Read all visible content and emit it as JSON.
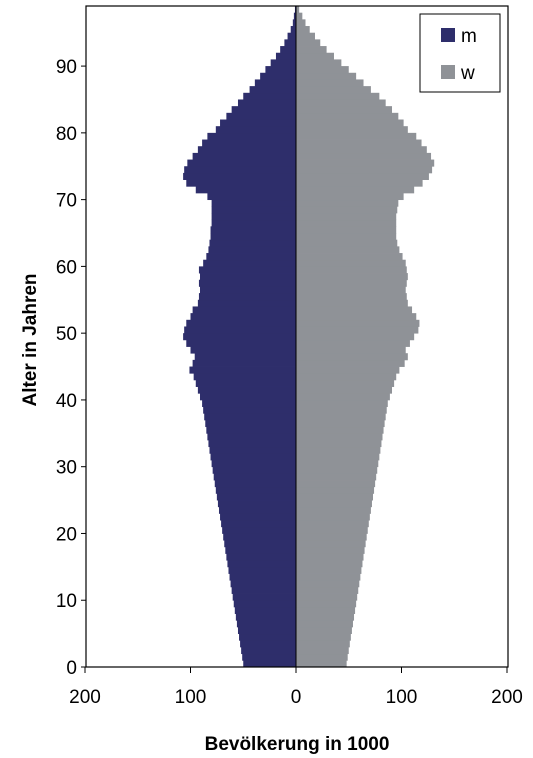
{
  "chart_data": {
    "type": "bar",
    "orientation": "horizontal-population-pyramid",
    "xlabel": "Bevölkerung in 1000",
    "ylabel": "Alter in Jahren",
    "xlim": [
      -200,
      200
    ],
    "ylim": [
      0,
      99
    ],
    "x_ticks": [
      {
        "value": -200,
        "label": "200"
      },
      {
        "value": -100,
        "label": "100"
      },
      {
        "value": 0,
        "label": "0"
      },
      {
        "value": 100,
        "label": "100"
      },
      {
        "value": 200,
        "label": "200"
      }
    ],
    "y_ticks": [
      {
        "value": 0,
        "label": "0"
      },
      {
        "value": 10,
        "label": "10"
      },
      {
        "value": 20,
        "label": "20"
      },
      {
        "value": 30,
        "label": "30"
      },
      {
        "value": 40,
        "label": "40"
      },
      {
        "value": 50,
        "label": "50"
      },
      {
        "value": 60,
        "label": "60"
      },
      {
        "value": 70,
        "label": "70"
      },
      {
        "value": 80,
        "label": "80"
      },
      {
        "value": 90,
        "label": "90"
      }
    ],
    "legend_position": "top-right",
    "grid": false,
    "ages": [
      0,
      1,
      2,
      3,
      4,
      5,
      6,
      7,
      8,
      9,
      10,
      11,
      12,
      13,
      14,
      15,
      16,
      17,
      18,
      19,
      20,
      21,
      22,
      23,
      24,
      25,
      26,
      27,
      28,
      29,
      30,
      31,
      32,
      33,
      34,
      35,
      36,
      37,
      38,
      39,
      40,
      41,
      42,
      43,
      44,
      45,
      46,
      47,
      48,
      49,
      50,
      51,
      52,
      53,
      54,
      55,
      56,
      57,
      58,
      59,
      60,
      61,
      62,
      63,
      64,
      65,
      66,
      67,
      68,
      69,
      70,
      71,
      72,
      73,
      74,
      75,
      76,
      77,
      78,
      79,
      80,
      81,
      82,
      83,
      84,
      85,
      86,
      87,
      88,
      89,
      90,
      91,
      92,
      93,
      94,
      95,
      96,
      97,
      98
    ],
    "series": [
      {
        "name": "m",
        "color": "#2e2e6b",
        "side": "left",
        "values": [
          50,
          51,
          52,
          53,
          54,
          55,
          56,
          57,
          58,
          59,
          60,
          61,
          62,
          63,
          64,
          65,
          66,
          67,
          68,
          69,
          70,
          71,
          72,
          73,
          74,
          75,
          76,
          77,
          78,
          79,
          80,
          81,
          82,
          83,
          84,
          85,
          86,
          87,
          88,
          89,
          91,
          93,
          95,
          97,
          101,
          98,
          96,
          100,
          104,
          107,
          106,
          104,
          100,
          98,
          93,
          92,
          91,
          92,
          91,
          92,
          88,
          85,
          83,
          82,
          81,
          81,
          80,
          80,
          80,
          80,
          84,
          95,
          104,
          107,
          106,
          103,
          98,
          93,
          89,
          84,
          76,
          72,
          66,
          61,
          55,
          50,
          44,
          39,
          34,
          29,
          24,
          19,
          15,
          11,
          8,
          5,
          3,
          2,
          1
        ]
      },
      {
        "name": "w",
        "color": "#8f9297",
        "side": "right",
        "values": [
          48,
          49,
          50,
          51,
          52,
          53,
          54,
          55,
          56,
          57,
          58,
          59,
          60,
          61,
          62,
          63,
          64,
          65,
          66,
          67,
          68,
          69,
          70,
          71,
          72,
          73,
          74,
          75,
          76,
          77,
          78,
          79,
          80,
          81,
          82,
          83,
          84,
          85,
          86,
          87,
          89,
          91,
          93,
          95,
          98,
          103,
          106,
          104,
          108,
          112,
          116,
          117,
          114,
          110,
          106,
          105,
          104,
          105,
          106,
          105,
          104,
          101,
          98,
          96,
          95,
          95,
          95,
          95,
          96,
          97,
          102,
          112,
          120,
          126,
          129,
          131,
          128,
          124,
          119,
          114,
          106,
          102,
          97,
          91,
          85,
          79,
          71,
          64,
          57,
          50,
          43,
          36,
          29,
          23,
          18,
          13,
          9,
          6,
          3
        ]
      }
    ]
  }
}
